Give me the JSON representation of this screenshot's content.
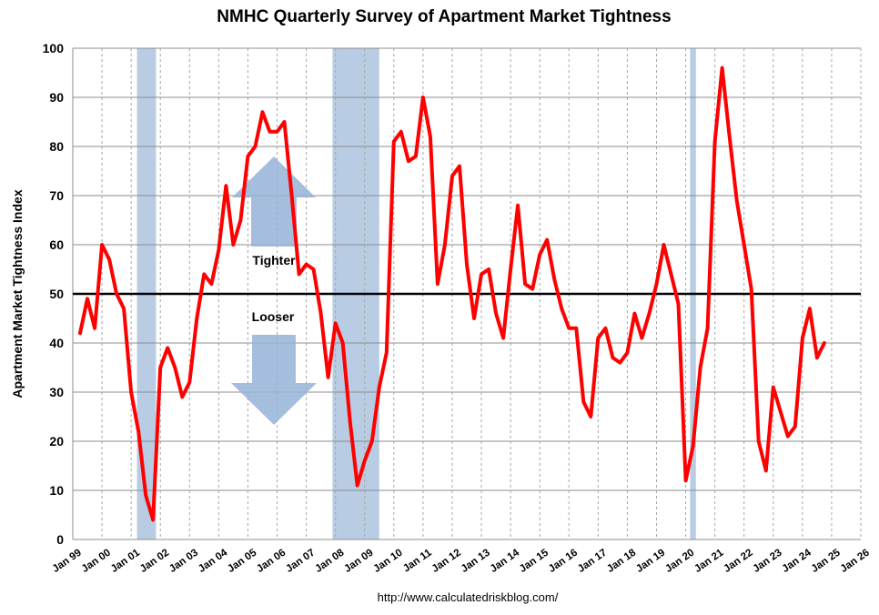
{
  "chart_data": {
    "type": "line",
    "title": "NMHC Quarterly Survey of Apartment Market Tightness",
    "ylabel": "Apartment Market Tightness Index",
    "xlabel": "",
    "ylim": [
      0,
      100
    ],
    "yticks": [
      0,
      10,
      20,
      30,
      40,
      50,
      60,
      70,
      80,
      90,
      100
    ],
    "xlim": [
      1999,
      2026
    ],
    "xticks": [
      {
        "year": 1999,
        "label": "Jan 99"
      },
      {
        "year": 2000,
        "label": "Jan 00"
      },
      {
        "year": 2001,
        "label": "Jan 01"
      },
      {
        "year": 2002,
        "label": "Jan 02"
      },
      {
        "year": 2003,
        "label": "Jan 03"
      },
      {
        "year": 2004,
        "label": "Jan 04"
      },
      {
        "year": 2005,
        "label": "Jan 05"
      },
      {
        "year": 2006,
        "label": "Jan 06"
      },
      {
        "year": 2007,
        "label": "Jan 07"
      },
      {
        "year": 2008,
        "label": "Jan 08"
      },
      {
        "year": 2009,
        "label": "Jan 09"
      },
      {
        "year": 2010,
        "label": "Jan 10"
      },
      {
        "year": 2011,
        "label": "Jan 11"
      },
      {
        "year": 2012,
        "label": "Jan 12"
      },
      {
        "year": 2013,
        "label": "Jan 13"
      },
      {
        "year": 2014,
        "label": "Jan 14"
      },
      {
        "year": 2015,
        "label": "Jan 15"
      },
      {
        "year": 2016,
        "label": "Jan 16"
      },
      {
        "year": 2017,
        "label": "Jan 17"
      },
      {
        "year": 2018,
        "label": "Jan 18"
      },
      {
        "year": 2019,
        "label": "Jan 19"
      },
      {
        "year": 2020,
        "label": "Jan 20"
      },
      {
        "year": 2021,
        "label": "Jan 21"
      },
      {
        "year": 2022,
        "label": "Jan 22"
      },
      {
        "year": 2023,
        "label": "Jan 23"
      },
      {
        "year": 2024,
        "label": "Jan 24"
      },
      {
        "year": 2025,
        "label": "Jan 25"
      },
      {
        "year": 2026,
        "label": "Jan 26"
      }
    ],
    "reference_line": {
      "y": 50,
      "color": "#000000"
    },
    "recessions": [
      {
        "start": 2001.2,
        "end": 2001.85
      },
      {
        "start": 2007.9,
        "end": 2009.5
      },
      {
        "start": 2020.15,
        "end": 2020.35
      }
    ],
    "annotations": [
      {
        "text": "Tighter",
        "direction": "up"
      },
      {
        "text": "Looser",
        "direction": "down"
      }
    ],
    "grid": true,
    "series": [
      {
        "color": "#ff0000",
        "points": [
          [
            1999.25,
            42
          ],
          [
            1999.5,
            49
          ],
          [
            1999.75,
            43
          ],
          [
            2000.0,
            60
          ],
          [
            2000.25,
            57
          ],
          [
            2000.5,
            50
          ],
          [
            2000.75,
            47
          ],
          [
            2001.0,
            30
          ],
          [
            2001.25,
            22
          ],
          [
            2001.5,
            9
          ],
          [
            2001.75,
            4
          ],
          [
            2002.0,
            35
          ],
          [
            2002.25,
            39
          ],
          [
            2002.5,
            35
          ],
          [
            2002.75,
            29
          ],
          [
            2003.0,
            32
          ],
          [
            2003.25,
            45
          ],
          [
            2003.5,
            54
          ],
          [
            2003.75,
            52
          ],
          [
            2004.0,
            59
          ],
          [
            2004.25,
            72
          ],
          [
            2004.5,
            60
          ],
          [
            2004.75,
            65
          ],
          [
            2005.0,
            78
          ],
          [
            2005.25,
            80
          ],
          [
            2005.5,
            87
          ],
          [
            2005.75,
            83
          ],
          [
            2006.0,
            83
          ],
          [
            2006.25,
            85
          ],
          [
            2006.5,
            70
          ],
          [
            2006.75,
            54
          ],
          [
            2007.0,
            56
          ],
          [
            2007.25,
            55
          ],
          [
            2007.5,
            46
          ],
          [
            2007.75,
            33
          ],
          [
            2008.0,
            44
          ],
          [
            2008.25,
            40
          ],
          [
            2008.5,
            24
          ],
          [
            2008.75,
            11
          ],
          [
            2009.0,
            16
          ],
          [
            2009.25,
            20
          ],
          [
            2009.5,
            31
          ],
          [
            2009.75,
            38
          ],
          [
            2010.0,
            81
          ],
          [
            2010.25,
            83
          ],
          [
            2010.5,
            77
          ],
          [
            2010.75,
            78
          ],
          [
            2011.0,
            90
          ],
          [
            2011.25,
            82
          ],
          [
            2011.5,
            52
          ],
          [
            2011.75,
            60
          ],
          [
            2012.0,
            74
          ],
          [
            2012.25,
            76
          ],
          [
            2012.5,
            56
          ],
          [
            2012.75,
            45
          ],
          [
            2013.0,
            54
          ],
          [
            2013.25,
            55
          ],
          [
            2013.5,
            46
          ],
          [
            2013.75,
            41
          ],
          [
            2014.0,
            55
          ],
          [
            2014.25,
            68
          ],
          [
            2014.5,
            52
          ],
          [
            2014.75,
            51
          ],
          [
            2015.0,
            58
          ],
          [
            2015.25,
            61
          ],
          [
            2015.5,
            53
          ],
          [
            2015.75,
            47
          ],
          [
            2016.0,
            43
          ],
          [
            2016.25,
            43
          ],
          [
            2016.5,
            28
          ],
          [
            2016.75,
            25
          ],
          [
            2017.0,
            41
          ],
          [
            2017.25,
            43
          ],
          [
            2017.5,
            37
          ],
          [
            2017.75,
            36
          ],
          [
            2018.0,
            38
          ],
          [
            2018.25,
            46
          ],
          [
            2018.5,
            41
          ],
          [
            2018.75,
            46
          ],
          [
            2019.0,
            52
          ],
          [
            2019.25,
            60
          ],
          [
            2019.5,
            54
          ],
          [
            2019.75,
            48
          ],
          [
            2020.0,
            12
          ],
          [
            2020.25,
            19
          ],
          [
            2020.5,
            35
          ],
          [
            2020.75,
            43
          ],
          [
            2021.0,
            81
          ],
          [
            2021.25,
            96
          ],
          [
            2021.5,
            82
          ],
          [
            2021.75,
            69
          ],
          [
            2022.0,
            60
          ],
          [
            2022.25,
            51
          ],
          [
            2022.5,
            20
          ],
          [
            2022.75,
            14
          ],
          [
            2023.0,
            31
          ],
          [
            2023.25,
            26
          ],
          [
            2023.5,
            21
          ],
          [
            2023.75,
            23
          ],
          [
            2024.0,
            41
          ],
          [
            2024.25,
            47
          ],
          [
            2024.5,
            37
          ],
          [
            2024.75,
            40
          ]
        ]
      }
    ]
  },
  "footer": {
    "source": "http://www.calculatedriskblog.com/"
  }
}
